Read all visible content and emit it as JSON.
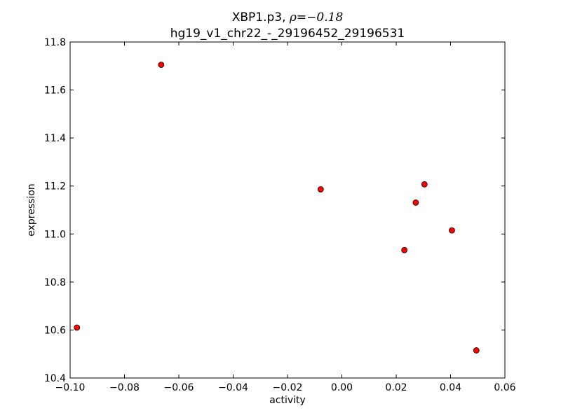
{
  "chart_data": {
    "type": "scatter",
    "title_prefix": "XBP1.p3, ",
    "title_rho_symbol": "ρ",
    "title_rho_value": "=−0.18",
    "subtitle": "hg19_v1_chr22_-_29196452_29196531",
    "xlabel": "activity",
    "ylabel": "expression",
    "xlim": [
      -0.1,
      0.06
    ],
    "ylim": [
      10.4,
      11.8
    ],
    "x_ticks": [
      {
        "value": -0.1,
        "label": "−0.10"
      },
      {
        "value": -0.08,
        "label": "−0.08"
      },
      {
        "value": -0.06,
        "label": "−0.06"
      },
      {
        "value": -0.04,
        "label": "−0.04"
      },
      {
        "value": -0.02,
        "label": "−0.02"
      },
      {
        "value": 0.0,
        "label": "0.00"
      },
      {
        "value": 0.02,
        "label": "0.02"
      },
      {
        "value": 0.04,
        "label": "0.04"
      },
      {
        "value": 0.06,
        "label": "0.06"
      }
    ],
    "y_ticks": [
      {
        "value": 10.4,
        "label": "10.4"
      },
      {
        "value": 10.6,
        "label": "10.6"
      },
      {
        "value": 10.8,
        "label": "10.8"
      },
      {
        "value": 11.0,
        "label": "11.0"
      },
      {
        "value": 11.2,
        "label": "11.2"
      },
      {
        "value": 11.4,
        "label": "11.4"
      },
      {
        "value": 11.6,
        "label": "11.6"
      },
      {
        "value": 11.8,
        "label": "11.8"
      }
    ],
    "grid": false,
    "marker_color": "#ff0000",
    "marker_edge_color": "#000000",
    "points": [
      {
        "x": -0.0975,
        "y": 10.61
      },
      {
        "x": -0.0665,
        "y": 11.705
      },
      {
        "x": -0.0078,
        "y": 11.186
      },
      {
        "x": 0.023,
        "y": 10.933
      },
      {
        "x": 0.0272,
        "y": 11.131
      },
      {
        "x": 0.0304,
        "y": 11.207
      },
      {
        "x": 0.0405,
        "y": 11.015
      },
      {
        "x": 0.0495,
        "y": 10.515
      }
    ]
  }
}
